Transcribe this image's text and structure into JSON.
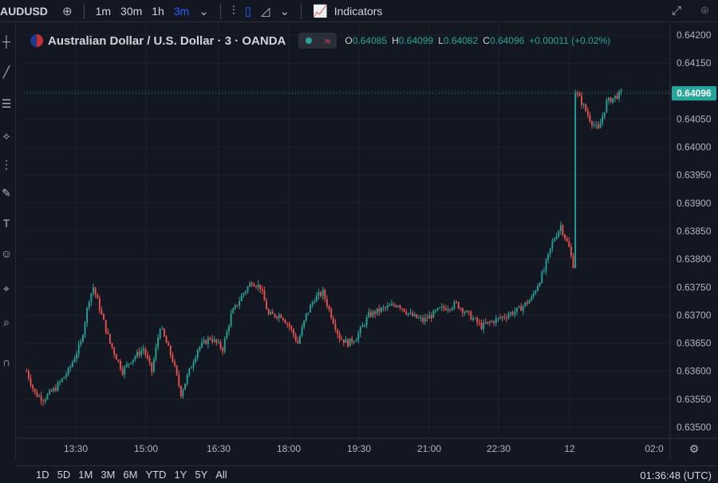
{
  "toolbar": {
    "symbol": "AUDUSD",
    "intervals": [
      "1m",
      "30m",
      "1h",
      "3m"
    ],
    "active_interval": "3m",
    "indicators_label": "Indicators"
  },
  "legend": {
    "title": "Australian Dollar / U.S. Dollar · 3 · OANDA",
    "o_label": "O",
    "o_value": "0.64085",
    "h_label": "H",
    "h_value": "0.64099",
    "l_label": "L",
    "l_value": "0.64082",
    "c_label": "C",
    "c_value": "0.64096",
    "change": "+0.00011 (+0.02%)"
  },
  "bottom": {
    "ranges": [
      "1D",
      "5D",
      "1M",
      "3M",
      "6M",
      "YTD",
      "1Y",
      "5Y",
      "All"
    ],
    "clock": "01:36:48 (UTC)"
  },
  "colors": {
    "up": "#26a69a",
    "down": "#ef5350",
    "background": "#131722",
    "grid": "#1e222d",
    "accent": "#2962ff"
  },
  "chart_data": {
    "type": "candlestick",
    "y_ticks": [
      "0.64200",
      "0.64150",
      "0.64100",
      "0.64050",
      "0.64000",
      "0.63950",
      "0.63900",
      "0.63850",
      "0.63800",
      "0.63750",
      "0.63700",
      "0.63650",
      "0.63600",
      "0.63550",
      "0.63500"
    ],
    "x_ticks": [
      "13:30",
      "15:00",
      "16:30",
      "18:00",
      "19:30",
      "21:00",
      "22:30",
      "12",
      "02:0"
    ],
    "last_price": "0.64096",
    "ylim": [
      0.6348,
      0.6422
    ],
    "grid": true,
    "waypoints": [
      [
        0,
        0.636
      ],
      [
        4,
        0.6356
      ],
      [
        8,
        0.6355
      ],
      [
        14,
        0.6357
      ],
      [
        20,
        0.636
      ],
      [
        26,
        0.6365
      ],
      [
        30,
        0.6373
      ],
      [
        32,
        0.6375
      ],
      [
        36,
        0.637
      ],
      [
        40,
        0.6365
      ],
      [
        46,
        0.636
      ],
      [
        50,
        0.6362
      ],
      [
        56,
        0.6364
      ],
      [
        60,
        0.636
      ],
      [
        64,
        0.6368
      ],
      [
        70,
        0.6362
      ],
      [
        74,
        0.6356
      ],
      [
        78,
        0.636
      ],
      [
        82,
        0.6364
      ],
      [
        88,
        0.6366
      ],
      [
        94,
        0.6364
      ],
      [
        98,
        0.637
      ],
      [
        104,
        0.6374
      ],
      [
        108,
        0.6376
      ],
      [
        112,
        0.6375
      ],
      [
        116,
        0.637
      ],
      [
        122,
        0.637
      ],
      [
        126,
        0.6368
      ],
      [
        130,
        0.6365
      ],
      [
        134,
        0.637
      ],
      [
        138,
        0.6373
      ],
      [
        142,
        0.6374
      ],
      [
        146,
        0.637
      ],
      [
        150,
        0.6366
      ],
      [
        154,
        0.6365
      ],
      [
        158,
        0.6366
      ],
      [
        164,
        0.637
      ],
      [
        170,
        0.6371
      ],
      [
        178,
        0.6372
      ],
      [
        184,
        0.637
      ],
      [
        190,
        0.6369
      ],
      [
        198,
        0.6371
      ],
      [
        206,
        0.6372
      ],
      [
        212,
        0.637
      ],
      [
        218,
        0.6368
      ],
      [
        224,
        0.6369
      ],
      [
        230,
        0.637
      ],
      [
        236,
        0.6371
      ],
      [
        242,
        0.6373
      ],
      [
        248,
        0.6378
      ],
      [
        252,
        0.6383
      ],
      [
        256,
        0.6386
      ],
      [
        260,
        0.6382
      ],
      [
        262,
        0.6379
      ],
      [
        263,
        0.641
      ],
      [
        266,
        0.6408
      ],
      [
        270,
        0.6405
      ],
      [
        274,
        0.6403
      ],
      [
        278,
        0.6408
      ],
      [
        282,
        0.6409
      ],
      [
        285,
        0.64096
      ]
    ]
  }
}
